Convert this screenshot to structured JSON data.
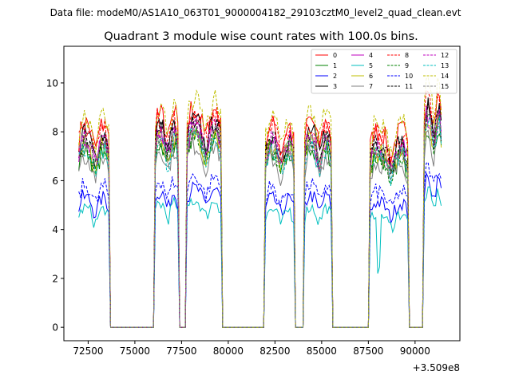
{
  "header": {
    "data_file": "Data file: modeM0/AS1A10_063T01_9000004182_29103cztM0_level2_quad_clean.evt"
  },
  "chart_data": {
    "type": "line",
    "title": "Quadrant 3 module wise count rates with 100.0s bins.",
    "xlabel": "",
    "ylabel": "",
    "x_offset_label": "+3.509e8",
    "xlim": [
      71200,
      92400
    ],
    "ylim": [
      -0.55,
      11.5
    ],
    "xticks": [
      72500,
      75000,
      77500,
      80000,
      82500,
      85000,
      87500,
      90000
    ],
    "xtick_labels": [
      "72500",
      "75000",
      "77500",
      "80000",
      "82500",
      "85000",
      "87500",
      "90000"
    ],
    "yticks": [
      0,
      2,
      4,
      6,
      8,
      10
    ],
    "ytick_labels": [
      "0",
      "2",
      "4",
      "6",
      "8",
      "10"
    ],
    "legend_position": "top-right",
    "legend_columns": 4,
    "segments": [
      {
        "start": 72000,
        "end": 73600,
        "level": 7.6
      },
      {
        "start": 76100,
        "end": 77300,
        "level": 7.9
      },
      {
        "start": 77800,
        "end": 79600,
        "level": 8.1
      },
      {
        "start": 82000,
        "end": 83500,
        "level": 7.5
      },
      {
        "start": 84100,
        "end": 85500,
        "level": 7.7
      },
      {
        "start": 87600,
        "end": 89600,
        "level": 7.3
      },
      {
        "start": 90500,
        "end": 91400,
        "level": 8.6
      }
    ],
    "series": [
      {
        "name": "0",
        "color": "#ff0000",
        "dash": "solid",
        "scale": 1.1
      },
      {
        "name": "1",
        "color": "#008000",
        "dash": "solid",
        "scale": 0.95
      },
      {
        "name": "2",
        "color": "#0000ff",
        "dash": "solid",
        "scale": 0.7
      },
      {
        "name": "3",
        "color": "#000000",
        "dash": "solid",
        "scale": 1.04
      },
      {
        "name": "4",
        "color": "#bf00bf",
        "dash": "solid",
        "scale": 1.0
      },
      {
        "name": "5",
        "color": "#00bfbf",
        "dash": "solid",
        "scale": 0.64
      },
      {
        "name": "6",
        "color": "#bfbf00",
        "dash": "solid",
        "scale": 0.98
      },
      {
        "name": "7",
        "color": "#808080",
        "dash": "solid",
        "scale": 0.92
      },
      {
        "name": "8",
        "color": "#ff0000",
        "dash": "dashed",
        "scale": 1.08
      },
      {
        "name": "9",
        "color": "#008000",
        "dash": "dashed",
        "scale": 0.97
      },
      {
        "name": "10",
        "color": "#0000ff",
        "dash": "dashed",
        "scale": 0.76
      },
      {
        "name": "11",
        "color": "#000000",
        "dash": "dashed",
        "scale": 1.02
      },
      {
        "name": "12",
        "color": "#bf00bf",
        "dash": "dashed",
        "scale": 1.01
      },
      {
        "name": "13",
        "color": "#00bfbf",
        "dash": "dashed",
        "scale": 0.96
      },
      {
        "name": "14",
        "color": "#bfbf00",
        "dash": "dashed",
        "scale": 1.14
      },
      {
        "name": "15",
        "color": "#808080",
        "dash": "dashed",
        "scale": 0.99
      }
    ],
    "bin_seconds": 100
  }
}
